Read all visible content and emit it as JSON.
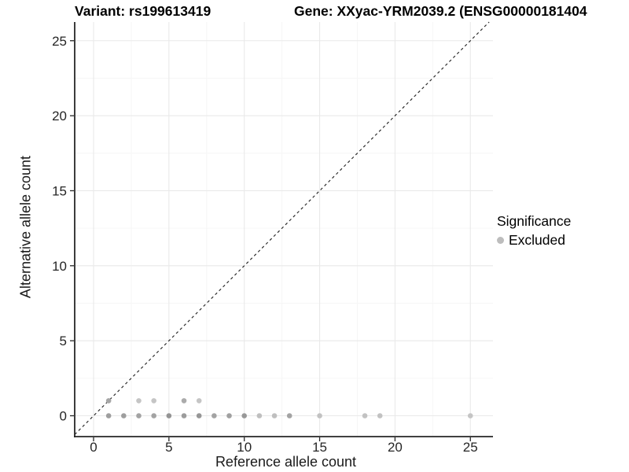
{
  "title": {
    "left": "Variant: rs199613419",
    "right": "Gene: XXyac-YRM2039.2 (ENSG00000181404"
  },
  "chart_data": {
    "type": "scatter",
    "title": "Variant: rs199613419  /  Gene: XXyac-YRM2039.2 (ENSG00000181404",
    "xlabel": "Reference allele count",
    "ylabel": "Alternative allele count",
    "xlim": [
      -1.25,
      26.5
    ],
    "ylim": [
      -1.4,
      26.25
    ],
    "x_ticks": [
      0,
      5,
      10,
      15,
      20,
      25
    ],
    "y_ticks": [
      0,
      5,
      10,
      15,
      20,
      25
    ],
    "minor_ticks": [
      2.5,
      7.5,
      12.5,
      17.5,
      22.5
    ],
    "grid": true,
    "identity_line": {
      "type": "dashed",
      "slope": 1,
      "intercept": 0,
      "color": "#262626"
    },
    "legend": {
      "title": "Significance",
      "position": "right",
      "items": [
        {
          "label": "Excluded",
          "color": "#bdbdbd"
        }
      ]
    },
    "series": [
      {
        "name": "Excluded",
        "points": [
          {
            "x": 1,
            "y": 0,
            "color": "#9e9e9e"
          },
          {
            "x": 2,
            "y": 0,
            "color": "#9e9e9e"
          },
          {
            "x": 3,
            "y": 0,
            "color": "#a3a3a3"
          },
          {
            "x": 4,
            "y": 0,
            "color": "#a3a3a3"
          },
          {
            "x": 5,
            "y": 0,
            "color": "#949494"
          },
          {
            "x": 6,
            "y": 0,
            "color": "#9c9c9c"
          },
          {
            "x": 7,
            "y": 0,
            "color": "#969696"
          },
          {
            "x": 8,
            "y": 0,
            "color": "#a3a3a3"
          },
          {
            "x": 9,
            "y": 0,
            "color": "#a0a0a0"
          },
          {
            "x": 10,
            "y": 0,
            "color": "#989898"
          },
          {
            "x": 11,
            "y": 0,
            "color": "#bfbfbf"
          },
          {
            "x": 12,
            "y": 0,
            "color": "#bfbfbf"
          },
          {
            "x": 13,
            "y": 0,
            "color": "#a3a3a3"
          },
          {
            "x": 15,
            "y": 0,
            "color": "#c2c2c2"
          },
          {
            "x": 18,
            "y": 0,
            "color": "#c2c2c2"
          },
          {
            "x": 19,
            "y": 0,
            "color": "#c2c2c2"
          },
          {
            "x": 25,
            "y": 0,
            "color": "#c5c5c5"
          },
          {
            "x": 1,
            "y": 1,
            "color": "#a6a6a6"
          },
          {
            "x": 3,
            "y": 1,
            "color": "#c5c5c5"
          },
          {
            "x": 4,
            "y": 1,
            "color": "#c5c5c5"
          },
          {
            "x": 6,
            "y": 1,
            "color": "#ababab"
          },
          {
            "x": 7,
            "y": 1,
            "color": "#c5c5c5"
          }
        ]
      }
    ],
    "style": {
      "grid_major_color": "#e9e9e9",
      "grid_minor_color": "#f6f6f6",
      "axis_line_color": "#262626",
      "tick_label_color": "#262626",
      "point_radius": 3.3
    }
  }
}
